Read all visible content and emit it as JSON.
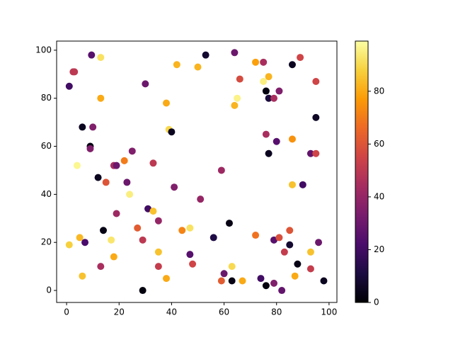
{
  "chart_data": {
    "type": "scatter",
    "colormap": "inferno",
    "x": [
      1,
      2.5,
      3,
      9.5,
      13,
      13,
      6,
      10,
      9,
      9,
      4,
      12,
      15,
      18,
      19,
      22,
      23,
      24,
      25,
      19,
      30,
      33,
      38,
      39,
      40,
      42,
      50,
      53,
      41,
      31,
      33,
      35,
      27,
      29,
      14,
      7,
      5,
      1,
      6,
      13,
      17,
      18,
      29,
      35,
      35,
      38,
      44,
      47,
      47,
      48,
      51,
      56,
      59,
      62,
      60,
      59,
      63,
      63,
      67,
      64,
      66,
      64,
      65,
      72,
      75,
      75,
      76,
      77,
      77,
      79,
      81,
      76,
      80,
      77,
      72,
      74,
      76,
      79,
      79,
      81,
      82,
      83,
      85,
      85,
      86,
      89,
      86,
      86,
      87,
      88,
      90,
      93,
      95,
      95,
      95,
      93,
      93,
      96,
      98
    ],
    "y": [
      85,
      91,
      91,
      98,
      97,
      80,
      68,
      68,
      60,
      59,
      52,
      47,
      45,
      52,
      52,
      54,
      45,
      40,
      58,
      32,
      86,
      53,
      78,
      67,
      66,
      94,
      93,
      98,
      43,
      34,
      33,
      29,
      26,
      21,
      25,
      20,
      22,
      19,
      6,
      10,
      21,
      14,
      0,
      16,
      10,
      5,
      25,
      26,
      15,
      11,
      38,
      22,
      50,
      28,
      7,
      4,
      4,
      10,
      4,
      99,
      88,
      77,
      80,
      95,
      95,
      87,
      83,
      80,
      89,
      80,
      83,
      65,
      62,
      57,
      23,
      5,
      2,
      21,
      3,
      22,
      0,
      16,
      19,
      25,
      94,
      97,
      63,
      44,
      6,
      11,
      44,
      57,
      57,
      87,
      72,
      16,
      9,
      20,
      4
    ],
    "c": [
      20,
      50,
      50,
      25,
      92,
      80,
      5,
      35,
      3,
      35,
      97,
      5,
      60,
      45,
      30,
      70,
      30,
      95,
      35,
      42,
      30,
      50,
      80,
      90,
      5,
      82,
      82,
      8,
      35,
      20,
      85,
      40,
      62,
      50,
      3,
      22,
      83,
      88,
      85,
      45,
      93,
      80,
      2,
      85,
      52,
      80,
      72,
      92,
      25,
      55,
      40,
      12,
      42,
      3,
      30,
      62,
      3,
      90,
      80,
      30,
      57,
      82,
      96,
      78,
      45,
      95,
      2,
      10,
      82,
      45,
      35,
      45,
      25,
      5,
      68,
      20,
      2,
      25,
      35,
      58,
      28,
      52,
      8,
      60,
      5,
      55,
      75,
      85,
      80,
      3,
      20,
      28,
      55,
      55,
      6,
      85,
      52,
      30,
      5
    ],
    "xlim": [
      -3.8,
      103
    ],
    "ylim": [
      -5,
      103.8
    ],
    "xticks": [
      0,
      20,
      40,
      60,
      80,
      100
    ],
    "yticks": [
      0,
      20,
      40,
      60,
      80,
      100
    ],
    "clim": [
      0,
      99
    ],
    "colorbar_ticks": [
      0,
      20,
      40,
      60,
      80
    ]
  }
}
